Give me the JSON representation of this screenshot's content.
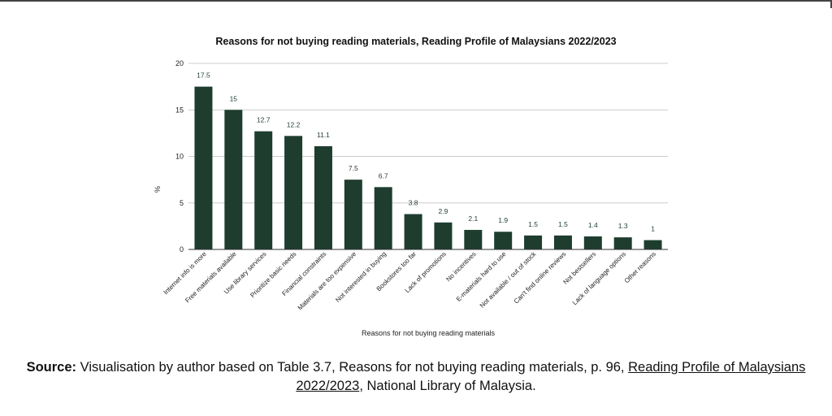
{
  "chart_data": {
    "type": "bar",
    "title": "Reasons for not buying reading materials, Reading Profile of Malaysians 2022/2023",
    "xlabel": "Reasons for not buying reading materials",
    "ylabel": "%",
    "ylim": [
      0,
      20
    ],
    "yticks": [
      "0",
      "5",
      "10",
      "15",
      "20"
    ],
    "grid": true,
    "bar_color": "#1e3d2f",
    "categories": [
      "Internet info is more",
      "Free materials available",
      "Use library services",
      "Prioritize basic needs",
      "Financial constraints",
      "Materials are too expensive",
      "Not interested in buying",
      "Bookstores too far",
      "Lack of promotions",
      "No incentives",
      "E-materials hard to use",
      "Not available / out of stock",
      "Can't find online reviews",
      "Not bestsellers",
      "Lack of language options",
      "Other reasons"
    ],
    "values": [
      17.5,
      15,
      12.7,
      12.2,
      11.1,
      7.5,
      6.7,
      3.8,
      2.9,
      2.1,
      1.9,
      1.5,
      1.5,
      1.4,
      1.3,
      1
    ],
    "value_labels": [
      "17.5",
      "15",
      "12.7",
      "12.2",
      "11.1",
      "7.5",
      "6.7",
      "3.8",
      "2.9",
      "2.1",
      "1.9",
      "1.5",
      "1.5",
      "1.4",
      "1.3",
      "1"
    ]
  },
  "caption": {
    "label": "Source:",
    "text_before": " Visualisation by author based on Table 3.7, Reasons for not buying reading materials, p. 96, ",
    "link_part1": "Reading Profile of Malaysians",
    "link_part2": "2022/2023",
    "text_after": ", National Library of Malaysia."
  }
}
